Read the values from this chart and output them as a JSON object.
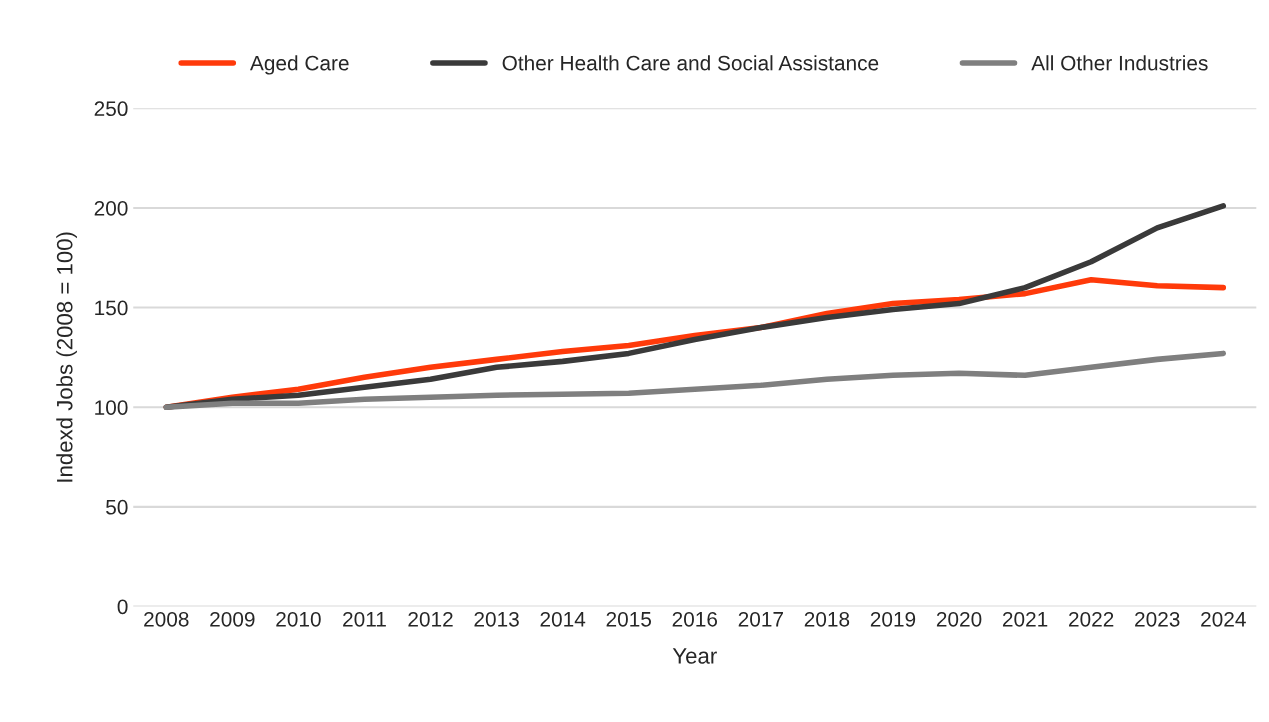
{
  "chart_data": {
    "type": "line",
    "xlabel": "Year",
    "ylabel": "Indexd Jobs (2008 = 100)",
    "categories": [
      "2008",
      "2009",
      "2010",
      "2011",
      "2012",
      "2013",
      "2014",
      "2015",
      "2016",
      "2017",
      "2018",
      "2019",
      "2020",
      "2021",
      "2022",
      "2023",
      "2024"
    ],
    "series": [
      {
        "name": "Aged Care",
        "color": "#ff3a0a",
        "values": [
          100,
          105,
          109,
          115,
          120,
          124,
          128,
          131,
          136,
          140,
          147,
          152,
          154,
          157,
          164,
          161,
          160
        ]
      },
      {
        "name": "Other Health Care and Social Assistance",
        "color": "#3a3a3a",
        "values": [
          100,
          104,
          106,
          110,
          114,
          120,
          123,
          127,
          134,
          140,
          145,
          149,
          152,
          160,
          173,
          190,
          201
        ]
      },
      {
        "name": "All Other Industries",
        "color": "#7f7f7f",
        "values": [
          100,
          102,
          102,
          104,
          105,
          106,
          106.5,
          107,
          109,
          111,
          114,
          116,
          117,
          116,
          120,
          124,
          127
        ]
      }
    ],
    "ylim": [
      0,
      250
    ],
    "yticks": [
      0,
      50,
      100,
      150,
      200,
      250
    ],
    "grid": "y",
    "legend": "top",
    "marker": "none",
    "line_style": "solid"
  }
}
